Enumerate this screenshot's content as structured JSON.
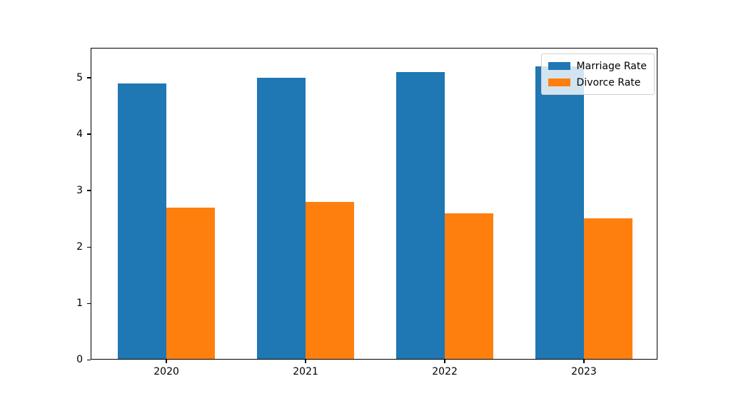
{
  "chart_data": {
    "type": "bar",
    "title": "",
    "xlabel": "",
    "ylabel": "",
    "categories": [
      "2020",
      "2021",
      "2022",
      "2023"
    ],
    "series": [
      {
        "name": "Marriage Rate",
        "color": "#1f77b4",
        "values": [
          4.9,
          5.0,
          5.1,
          5.2
        ]
      },
      {
        "name": "Divorce Rate",
        "color": "#ff7f0e",
        "values": [
          2.7,
          2.8,
          2.6,
          2.5
        ]
      }
    ],
    "yticks": [
      0,
      1,
      2,
      3,
      4,
      5
    ],
    "ytick_labels": [
      "0",
      "1",
      "2",
      "3",
      "4",
      "5"
    ],
    "ylim": [
      0,
      5.53
    ],
    "xlim": [
      -0.544,
      3.528
    ],
    "bar_width": 0.35,
    "grid": false,
    "legend": {
      "position": "upper right",
      "labels": [
        "Marriage Rate",
        "Divorce Rate"
      ],
      "framealpha": 0.8
    }
  },
  "colors": {
    "marriage": "#1f77b4",
    "divorce": "#ff7f0e",
    "axes": "#000000",
    "background": "#ffffff"
  }
}
